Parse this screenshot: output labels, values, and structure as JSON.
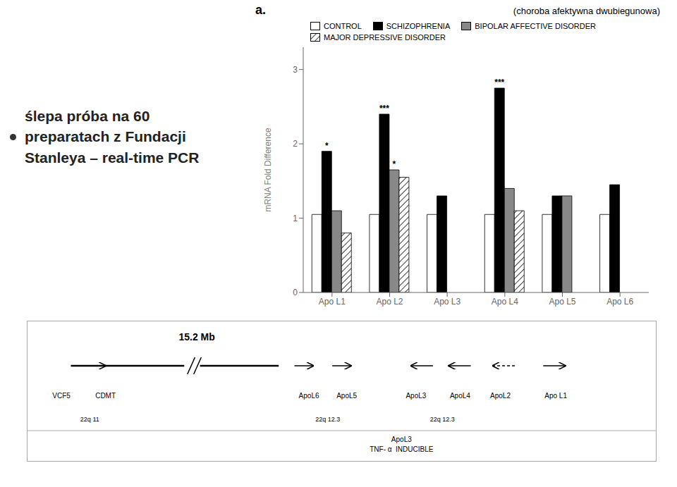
{
  "chart_data": {
    "type": "bar",
    "title": "ślepa próba na 60\npreparatach z Fundacji\nStanleya – real-time PCR",
    "subtitle": "(choroba afektywna dwubiegunowa)",
    "categories": [
      "Apo L1",
      "Apo L2",
      "Apo L3",
      "Apo L4",
      "Apo L5",
      "Apo L6"
    ],
    "series": [
      {
        "name": "CONTROL",
        "color": "#ffffff",
        "values": [
          1.05,
          1.05,
          1.05,
          1.05,
          1.05,
          1.05
        ]
      },
      {
        "name": "SCHIZOPHRENIA",
        "color": "#000000",
        "values": [
          1.9,
          2.4,
          1.3,
          2.75,
          1.3,
          1.45
        ]
      },
      {
        "name": "BIPOLAR AFFECTIVE DISORDER",
        "color": "#888888",
        "values": [
          1.1,
          1.65,
          null,
          1.4,
          1.3,
          null
        ]
      },
      {
        "name": "MAJOR DEPRESSIVE DISORDER",
        "color": "#ffffff",
        "values": [
          0.8,
          1.55,
          null,
          1.1,
          null,
          null
        ]
      }
    ],
    "ylabel": "mRNA Fold Difference",
    "ylim": [
      0,
      3.3
    ],
    "yticks": [
      0,
      1,
      2,
      3
    ],
    "grid": false,
    "legend": "top",
    "annotations": [
      {
        "text": "*",
        "series": "SCHIZOPHRENIA",
        "category": "Apo L1"
      },
      {
        "text": "***",
        "series": "SCHIZOPHRENIA",
        "category": "Apo L2"
      },
      {
        "text": "*",
        "series": "BIPOLAR AFFECTIVE DISORDER",
        "category": "Apo L2"
      },
      {
        "text": "***",
        "series": "SCHIZOPHRENIA",
        "category": "Apo L4"
      },
      {
        "text": "a."
      },
      {
        "text": "15.2 Mb"
      },
      {
        "text": "VCF5"
      },
      {
        "text": "CDMT"
      },
      {
        "text": "ApoL6"
      },
      {
        "text": "ApoL5"
      },
      {
        "text": "ApoL3"
      },
      {
        "text": "ApoL4"
      },
      {
        "text": "ApoL2"
      },
      {
        "text": "Apo L1"
      },
      {
        "text": "22q 11"
      },
      {
        "text": "22q 12.3"
      },
      {
        "text": "22q 12.3"
      },
      {
        "text": "ApoL3\nTNF- α  INDUCIBLE"
      }
    ]
  }
}
